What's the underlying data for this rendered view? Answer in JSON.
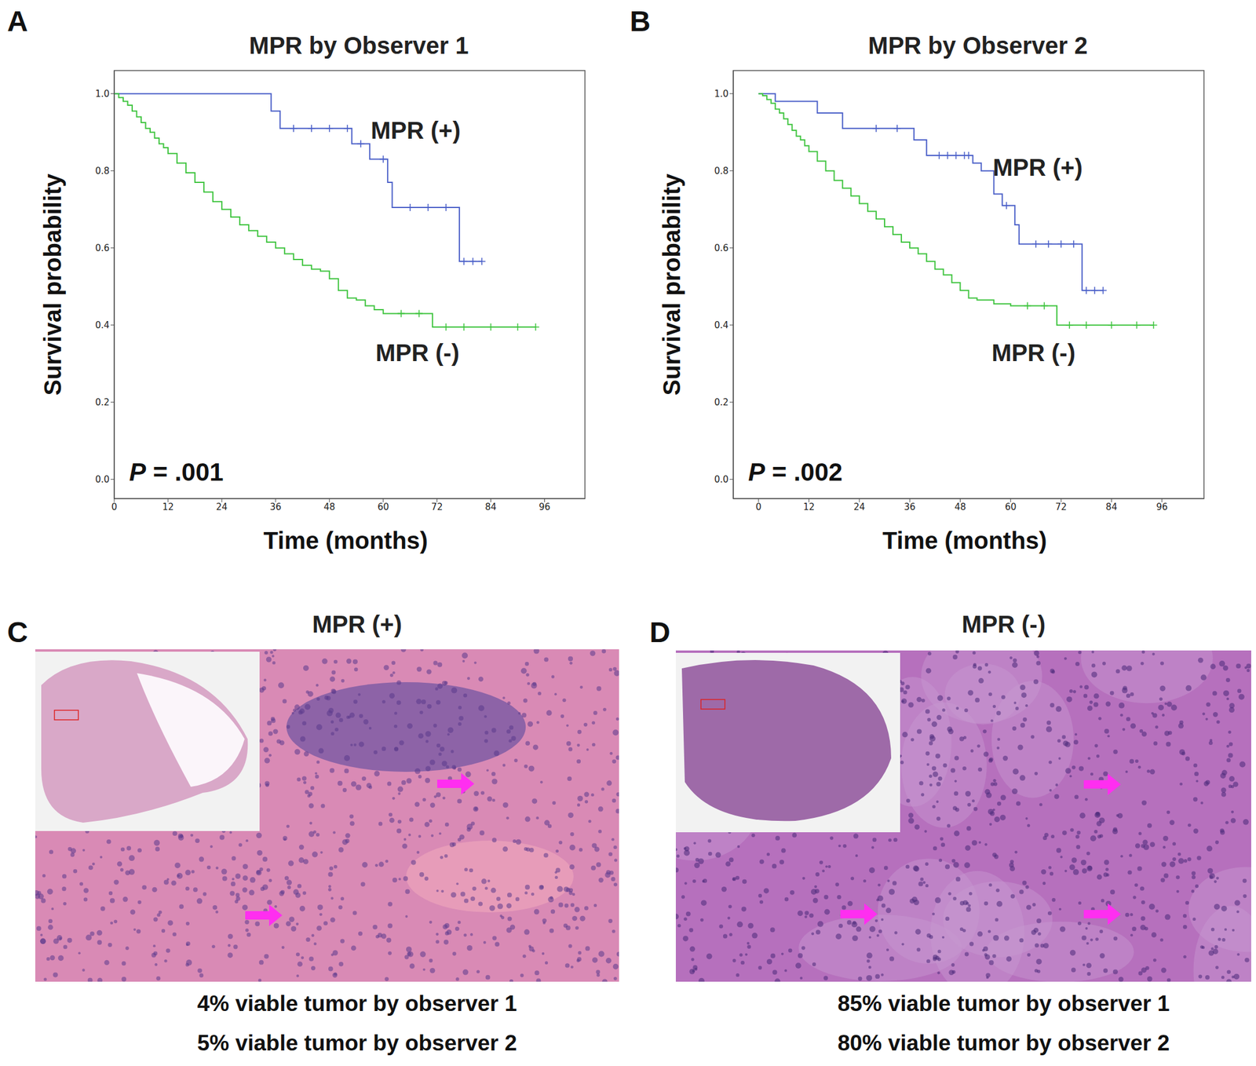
{
  "chart_data": [
    {
      "panel": "A",
      "type": "step",
      "title": "MPR by Observer 1",
      "x_label": "Time (months)",
      "y_label": "Survival probability",
      "annotation": "P = .001",
      "xlim": [
        0,
        105
      ],
      "ylim": [
        -0.05,
        1.06
      ],
      "xticks": [
        0,
        12,
        24,
        36,
        48,
        60,
        72,
        84,
        96
      ],
      "yticks": [
        {
          "value": 0,
          "label": "0.0"
        },
        {
          "value": 0.2,
          "label": "0.2"
        },
        {
          "value": 0.4,
          "label": "0.4"
        },
        {
          "value": 0.6,
          "label": "0.6"
        },
        {
          "value": 0.8,
          "label": "0.8"
        },
        {
          "value": 1,
          "label": "1.0"
        }
      ],
      "grid": false,
      "series": [
        {
          "name": "MPR (+)",
          "color": "#4a5fc8",
          "marker": "plus",
          "x": [
            0,
            35,
            37,
            40,
            44,
            48,
            52,
            53,
            55,
            57,
            60,
            61,
            62,
            66,
            70,
            74,
            77,
            78,
            80,
            82
          ],
          "values": [
            1,
            0.955,
            0.91,
            0.91,
            0.91,
            0.91,
            0.91,
            0.87,
            0.87,
            0.83,
            0.83,
            0.77,
            0.705,
            0.705,
            0.705,
            0.705,
            0.565,
            0.565,
            0.565,
            0.565
          ],
          "censored": [
            false,
            false,
            false,
            true,
            true,
            true,
            true,
            false,
            true,
            false,
            true,
            false,
            false,
            true,
            true,
            true,
            false,
            true,
            true,
            true
          ]
        },
        {
          "name": "MPR (-)",
          "color": "#3ec43e",
          "marker": "plus",
          "x": [
            0,
            1,
            2,
            3,
            4,
            5,
            6,
            7,
            8,
            9,
            10,
            11,
            12,
            14,
            16,
            18,
            20,
            22,
            24,
            26,
            28,
            30,
            32,
            34,
            36,
            38,
            40,
            42,
            44,
            46,
            48,
            50,
            52,
            54,
            56,
            58,
            60,
            64,
            68,
            71,
            74,
            78,
            84,
            90,
            94
          ],
          "values": [
            1,
            0.99,
            0.98,
            0.97,
            0.955,
            0.94,
            0.925,
            0.91,
            0.9,
            0.885,
            0.87,
            0.86,
            0.845,
            0.82,
            0.795,
            0.77,
            0.745,
            0.72,
            0.7,
            0.68,
            0.66,
            0.645,
            0.63,
            0.615,
            0.6,
            0.585,
            0.57,
            0.555,
            0.545,
            0.54,
            0.52,
            0.49,
            0.47,
            0.465,
            0.45,
            0.44,
            0.43,
            0.43,
            0.43,
            0.395,
            0.395,
            0.395,
            0.395,
            0.395,
            0.395
          ],
          "censored": [
            false,
            false,
            false,
            false,
            false,
            false,
            false,
            false,
            false,
            false,
            false,
            false,
            false,
            false,
            false,
            false,
            false,
            false,
            false,
            false,
            false,
            false,
            false,
            false,
            false,
            false,
            false,
            false,
            false,
            false,
            false,
            false,
            false,
            false,
            false,
            false,
            false,
            true,
            true,
            false,
            true,
            true,
            true,
            true,
            true
          ]
        }
      ]
    },
    {
      "panel": "B",
      "type": "step",
      "title": "MPR by Observer 2",
      "x_label": "Time (months)",
      "y_label": "Survival probability",
      "annotation": "P = .002",
      "xlim": [
        -6,
        106
      ],
      "ylim": [
        -0.05,
        1.06
      ],
      "xticks": [
        0,
        12,
        24,
        36,
        48,
        60,
        72,
        84,
        96
      ],
      "yticks": [
        {
          "value": 0,
          "label": "0.0"
        },
        {
          "value": 0.2,
          "label": "0.2"
        },
        {
          "value": 0.4,
          "label": "0.4"
        },
        {
          "value": 0.6,
          "label": "0.6"
        },
        {
          "value": 0.8,
          "label": "0.8"
        },
        {
          "value": 1,
          "label": "1.0"
        }
      ],
      "grid": false,
      "series": [
        {
          "name": "MPR (+)",
          "color": "#4a5fc8",
          "marker": "plus",
          "x": [
            0,
            4,
            14,
            20,
            28,
            33,
            37,
            40,
            43,
            45,
            47,
            49,
            50,
            51,
            53,
            56,
            58,
            59,
            61,
            62,
            66,
            69,
            72,
            75,
            77,
            78,
            80,
            82
          ],
          "values": [
            1,
            0.98,
            0.95,
            0.91,
            0.91,
            0.91,
            0.88,
            0.84,
            0.84,
            0.84,
            0.84,
            0.84,
            0.84,
            0.82,
            0.8,
            0.74,
            0.71,
            0.71,
            0.66,
            0.61,
            0.61,
            0.61,
            0.61,
            0.61,
            0.49,
            0.49,
            0.49,
            0.49
          ],
          "censored": [
            false,
            false,
            false,
            false,
            true,
            true,
            false,
            false,
            true,
            true,
            true,
            true,
            true,
            false,
            false,
            false,
            false,
            true,
            false,
            false,
            true,
            true,
            true,
            true,
            false,
            true,
            true,
            true
          ]
        },
        {
          "name": "MPR (-)",
          "color": "#3ec43e",
          "marker": "plus",
          "x": [
            0,
            1,
            2,
            3,
            4,
            5,
            6,
            7,
            8,
            9,
            10,
            11,
            12,
            14,
            16,
            18,
            20,
            22,
            24,
            26,
            28,
            30,
            32,
            34,
            36,
            38,
            40,
            42,
            44,
            46,
            48,
            50,
            52,
            56,
            60,
            64,
            68,
            71,
            74,
            78,
            84,
            90,
            94
          ],
          "values": [
            1,
            0.995,
            0.985,
            0.975,
            0.96,
            0.95,
            0.935,
            0.92,
            0.905,
            0.89,
            0.88,
            0.865,
            0.85,
            0.825,
            0.8,
            0.775,
            0.755,
            0.735,
            0.715,
            0.695,
            0.675,
            0.655,
            0.635,
            0.615,
            0.6,
            0.585,
            0.565,
            0.545,
            0.53,
            0.51,
            0.49,
            0.47,
            0.465,
            0.455,
            0.45,
            0.45,
            0.45,
            0.4,
            0.4,
            0.4,
            0.4,
            0.4,
            0.4
          ],
          "censored": [
            false,
            false,
            false,
            false,
            false,
            false,
            false,
            false,
            false,
            false,
            false,
            false,
            false,
            false,
            false,
            false,
            false,
            false,
            false,
            false,
            false,
            false,
            false,
            false,
            false,
            false,
            false,
            false,
            false,
            false,
            false,
            false,
            false,
            false,
            false,
            true,
            true,
            false,
            true,
            true,
            true,
            true,
            true
          ]
        }
      ]
    }
  ],
  "images": [
    {
      "panel": "C",
      "title": "MPR (+)",
      "captions": [
        "4% viable tumor by observer 1",
        "5% viable tumor by observer 2"
      ]
    },
    {
      "panel": "D",
      "title": "MPR (-)",
      "captions": [
        "85% viable tumor by observer 1",
        "80% viable tumor by observer 2"
      ]
    }
  ]
}
